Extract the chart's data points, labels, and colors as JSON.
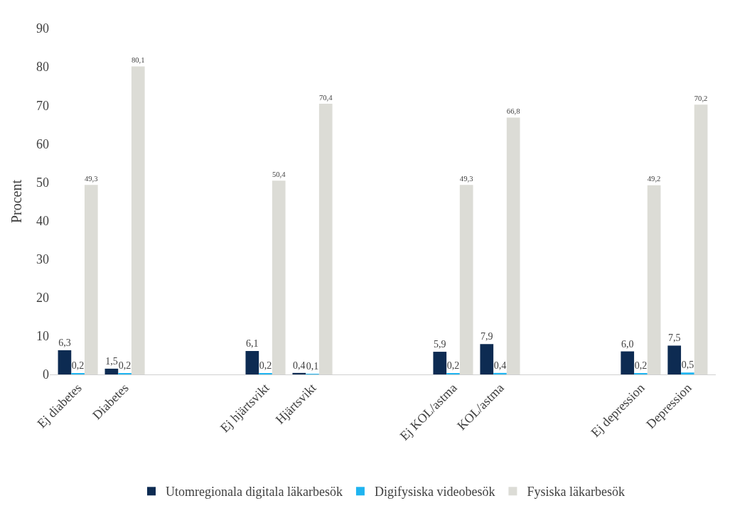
{
  "chart_data": {
    "type": "bar",
    "ylabel": "Procent",
    "categories": [
      "Ej diabetes",
      "Diabetes",
      null,
      null,
      "Ej hjärtsvikt",
      "Hjärtsvikt",
      null,
      null,
      "Ej KOL/astma",
      "KOL/astma",
      null,
      null,
      "Ej depression",
      "Depression"
    ],
    "series": [
      {
        "name": "Utomregionala digitala läkarbesök",
        "color": "#0d2b52",
        "values": [
          6.3,
          1.5,
          null,
          null,
          6.1,
          0.4,
          null,
          null,
          5.9,
          7.9,
          null,
          null,
          6.0,
          7.5
        ],
        "value_labels": [
          "6,3",
          "1,5",
          null,
          null,
          "6,1",
          "0,4",
          null,
          null,
          "5,9",
          "7,9",
          null,
          null,
          "6,0",
          "7,5"
        ]
      },
      {
        "name": "Digifysiska videobesök",
        "color": "#1fb4f0",
        "values": [
          0.2,
          0.2,
          null,
          null,
          0.2,
          0.1,
          null,
          null,
          0.2,
          0.4,
          null,
          null,
          0.2,
          0.5
        ],
        "value_labels": [
          "0,2",
          "0,2",
          null,
          null,
          "0,2",
          "0,1",
          null,
          null,
          "0,2",
          "0,4",
          null,
          null,
          "0,2",
          "0,5"
        ]
      },
      {
        "name": "Fysiska läkarbesök",
        "color": "#dcdcd6",
        "values": [
          49.3,
          80.1,
          null,
          null,
          50.4,
          70.4,
          null,
          null,
          49.3,
          66.8,
          null,
          null,
          49.2,
          70.2
        ],
        "value_labels": [
          "49,3",
          "80,1",
          null,
          null,
          "50,4",
          "70,4",
          null,
          null,
          "49,3",
          "66,8",
          null,
          null,
          "49,2",
          "70,2"
        ]
      }
    ],
    "ylim": [
      0,
      90
    ],
    "yticks": [
      0,
      10,
      20,
      30,
      40,
      50,
      60,
      70,
      80,
      90
    ],
    "legend": "bottom"
  }
}
